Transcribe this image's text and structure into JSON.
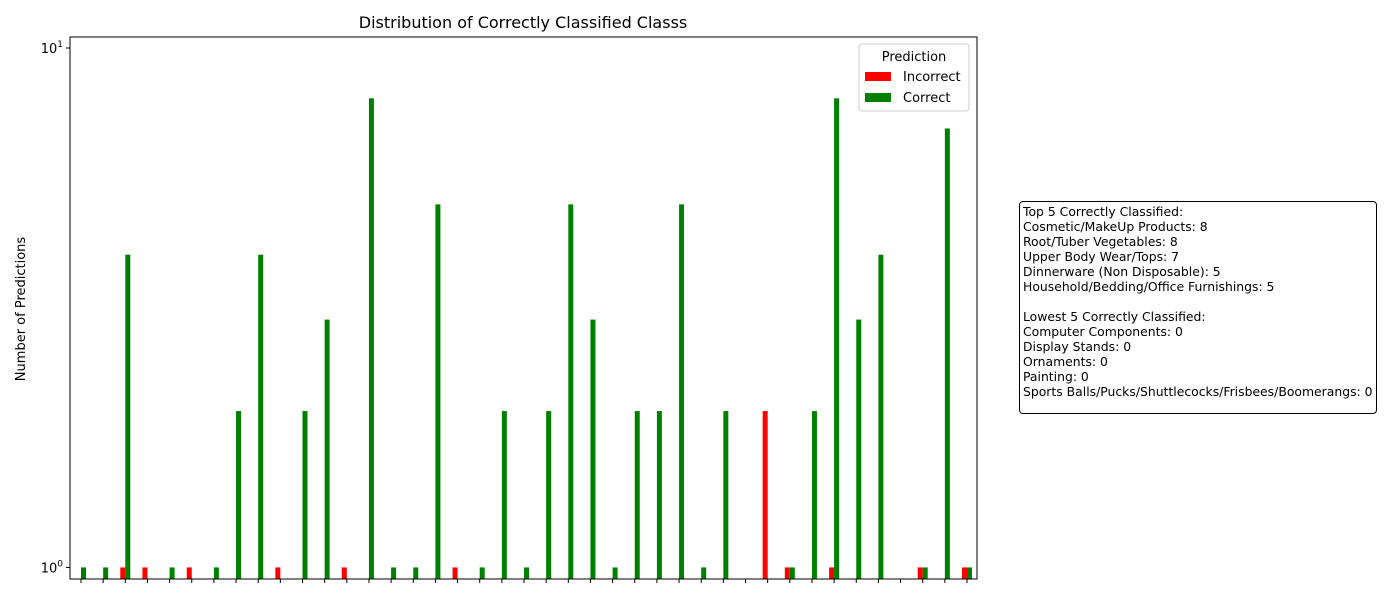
{
  "chart_data": {
    "type": "bar",
    "title": "Distribution of Correctly Classified Classs",
    "xlabel": "",
    "ylabel": "Number of Predictions",
    "yscale": "log",
    "ylim": [
      0.95,
      10.5
    ],
    "y_ticks": [
      {
        "value": 1,
        "base": "10",
        "exp": "0"
      },
      {
        "value": 10,
        "base": "10",
        "exp": "1"
      }
    ],
    "x_tick_labels_visible": false,
    "legend": {
      "title": "Prediction",
      "placement": "top-right"
    },
    "category_count": 41,
    "series": [
      {
        "name": "Incorrect",
        "color": "#ff0000",
        "values": [
          0,
          0,
          1,
          1,
          0,
          1,
          0,
          0,
          0,
          1,
          0,
          0,
          1,
          0,
          0,
          0,
          0,
          1,
          0,
          0,
          0,
          0,
          0,
          0,
          0,
          0,
          0,
          0,
          0,
          0,
          0,
          2,
          1,
          0,
          1,
          0,
          0,
          0,
          1,
          0,
          1
        ]
      },
      {
        "name": "Correct",
        "color": "#008000",
        "values": [
          1,
          1,
          4,
          0,
          1,
          0,
          1,
          2,
          4,
          0,
          2,
          3,
          0,
          8,
          1,
          1,
          5,
          0,
          1,
          2,
          1,
          2,
          5,
          3,
          1,
          2,
          2,
          5,
          1,
          2,
          0,
          0,
          1,
          2,
          8,
          3,
          4,
          0,
          1,
          7,
          1
        ]
      }
    ]
  },
  "summary": {
    "lines": [
      "Top 5 Correctly Classified:",
      "Cosmetic/MakeUp Products: 8",
      "Root/Tuber Vegetables: 8",
      "Upper Body Wear/Tops: 7",
      "Dinnerware (Non Disposable): 5",
      "Household/Bedding/Office Furnishings: 5",
      "",
      "Lowest 5 Correctly Classified:",
      "Computer Components: 0",
      "Display Stands: 0",
      "Ornaments: 0",
      "Painting: 0",
      "Sports Balls/Pucks/Shuttlecocks/Frisbees/Boomerangs: 0"
    ]
  }
}
